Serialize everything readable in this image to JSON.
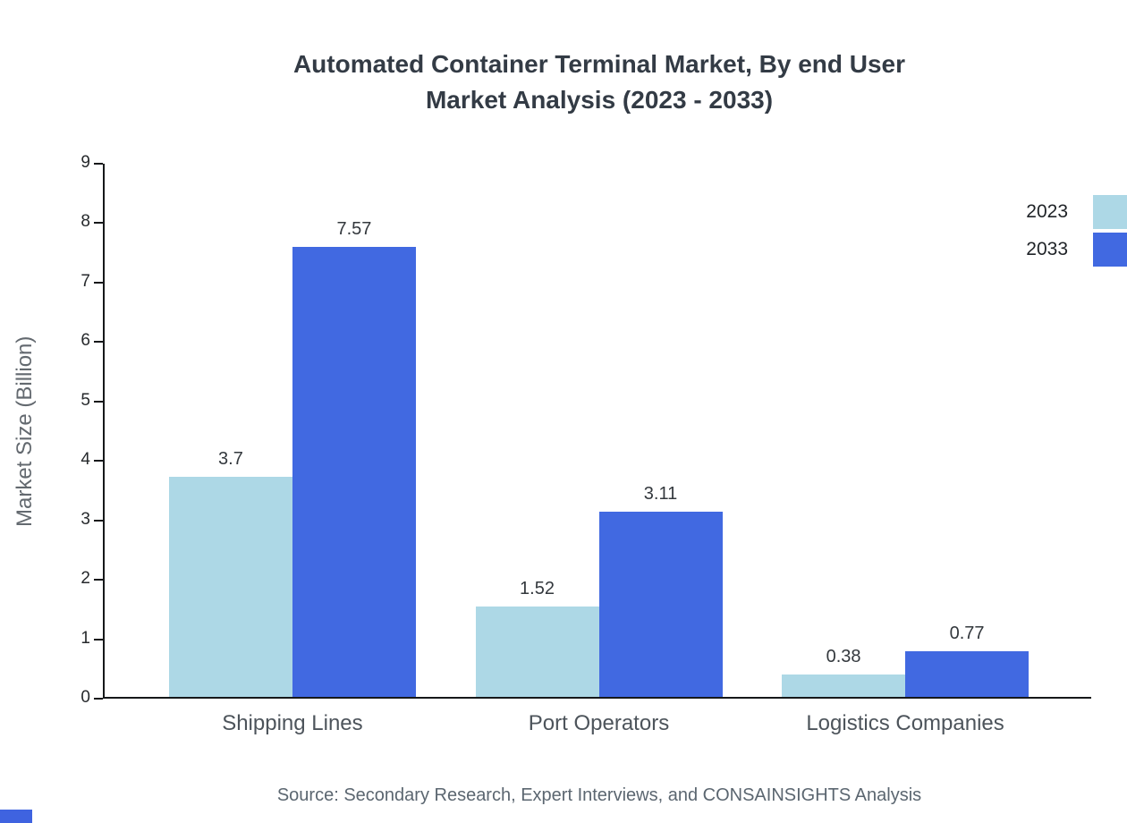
{
  "header": {
    "line1": "Automated Container Terminal Market, By end User",
    "line2": "Market Analysis (2023 - 2033)"
  },
  "footer": {
    "source": "Source: Secondary Research, Expert Interviews, and CONSAINSIGHTS Analysis"
  },
  "colors": {
    "series_2023": "#add8e6",
    "series_2033": "#4169e1",
    "axis": "#16181a",
    "accent": "#3f63e0"
  },
  "chart_data": {
    "type": "bar",
    "title": "Automated Container Terminal Market, By end User Market Analysis (2023 - 2033)",
    "categories": [
      "Shipping Lines",
      "Port Operators",
      "Logistics Companies"
    ],
    "series": [
      {
        "name": "2023",
        "color": "#add8e6",
        "values": [
          3.7,
          1.52,
          0.38
        ]
      },
      {
        "name": "2033",
        "color": "#4169e1",
        "values": [
          7.57,
          3.11,
          0.77
        ]
      }
    ],
    "xlabel": "",
    "ylabel": "Market Size (Billion)",
    "ylim": [
      0,
      9
    ],
    "ytick_step": 1,
    "grid": false,
    "legend_position": "top-right",
    "source": "Source: Secondary Research, Expert Interviews, and CONSAINSIGHTS Analysis"
  }
}
